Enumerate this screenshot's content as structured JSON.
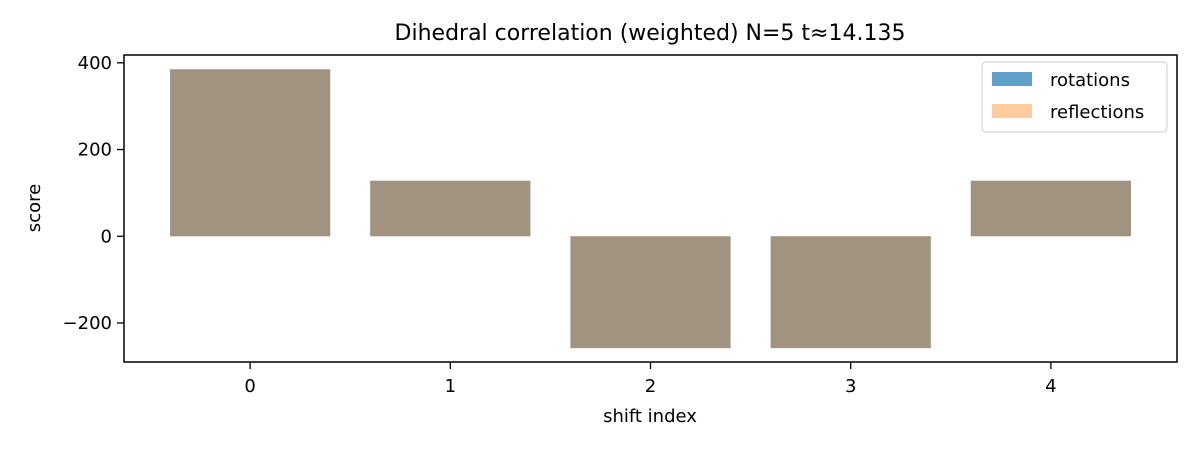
{
  "chart_data": {
    "type": "bar",
    "title": "Dihedral correlation (weighted) N=5 t≈14.135",
    "xlabel": "shift index",
    "ylabel": "score",
    "categories": [
      "0",
      "1",
      "2",
      "3",
      "4"
    ],
    "series": [
      {
        "name": "rotations",
        "values": [
          385,
          128,
          -258,
          -258,
          128
        ],
        "color": "#1f77b4",
        "opacity": 0.7
      },
      {
        "name": "reflections",
        "values": [
          385,
          128,
          -258,
          -258,
          128
        ],
        "color": "#ff7f0e",
        "opacity": 0.4
      }
    ],
    "y_ticks": [
      -200,
      0,
      200,
      400
    ],
    "y_tick_labels": [
      "−200",
      "0",
      "200",
      "400"
    ],
    "ylim": [
      -290,
      418
    ],
    "grid": false,
    "legend_position": "top-right"
  }
}
